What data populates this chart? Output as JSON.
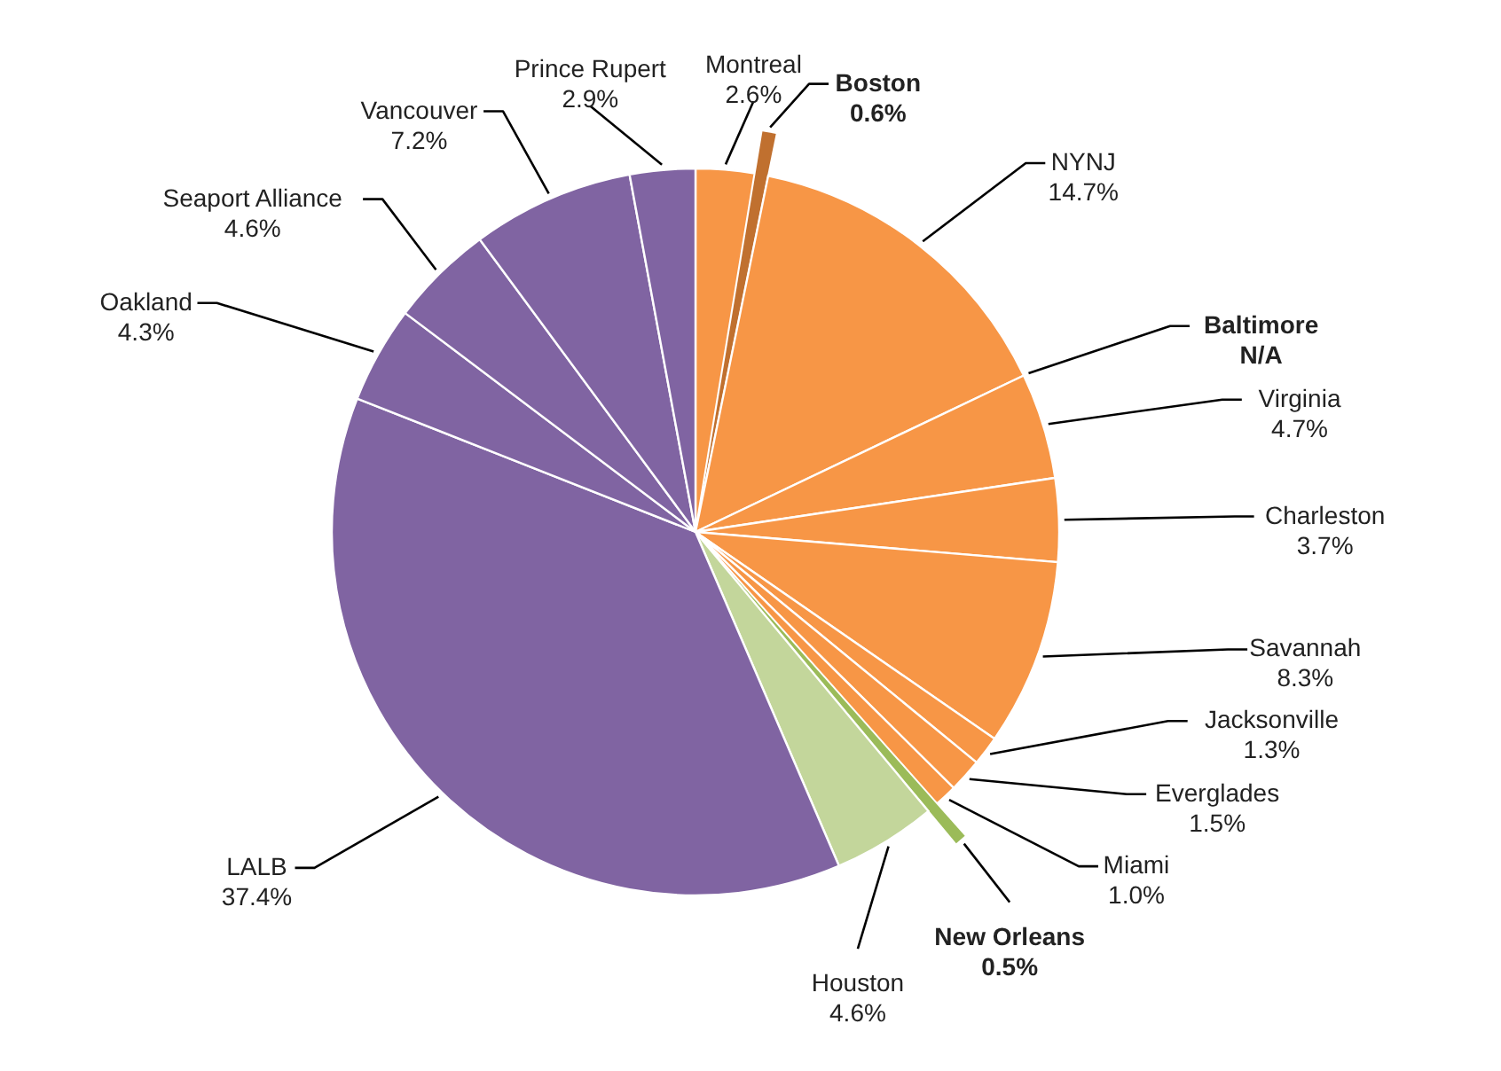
{
  "chart_data": {
    "type": "pie",
    "categories": [
      "Montreal",
      "Boston",
      "NYNJ",
      "Baltimore",
      "Virginia",
      "Charleston",
      "Savannah",
      "Jacksonville",
      "Everglades",
      "Miami",
      "New Orleans",
      "Houston",
      "LALB",
      "Oakland",
      "Seaport Alliance",
      "Vancouver",
      "Prince Rupert"
    ],
    "values": [
      2.6,
      0.6,
      14.7,
      null,
      4.7,
      3.7,
      8.3,
      1.3,
      1.5,
      1.0,
      0.5,
      4.6,
      37.4,
      4.3,
      4.6,
      7.2,
      2.9
    ],
    "colors": [
      "#f79646",
      "#c0702f",
      "#f79646",
      null,
      "#f79646",
      "#f79646",
      "#f79646",
      "#f79646",
      "#f79646",
      "#f79646",
      "#9bbb59",
      "#c3d69b",
      "#8064a2",
      "#8064a2",
      "#8064a2",
      "#8064a2",
      "#8064a2"
    ],
    "value_labels": [
      "2.6%",
      "0.6%",
      "14.7%",
      "N/A",
      "4.7%",
      "3.7%",
      "8.3%",
      "1.3%",
      "1.5%",
      "1.0%",
      "0.5%",
      "4.6%",
      "37.4%",
      "4.3%",
      "4.6%",
      "7.2%",
      "2.9%"
    ]
  }
}
